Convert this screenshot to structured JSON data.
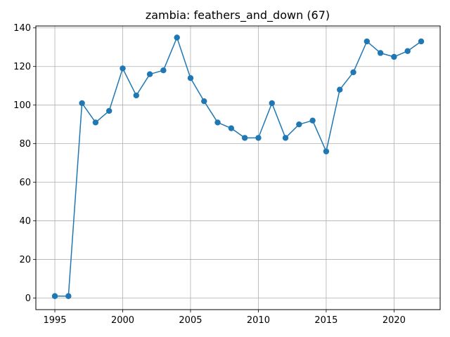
{
  "chart_data": {
    "type": "line",
    "title": "zambia: feathers_and_down (67)",
    "xlabel": "",
    "ylabel": "",
    "xlim": [
      1993.6,
      2023.4
    ],
    "ylim": [
      -6,
      141
    ],
    "grid": true,
    "x_ticks": [
      1995,
      2000,
      2005,
      2010,
      2015,
      2020
    ],
    "y_ticks": [
      0,
      20,
      40,
      60,
      80,
      100,
      120,
      140
    ],
    "line_color": "#1f77b4",
    "marker": "circle",
    "series": [
      {
        "x": [
          1995,
          1996,
          1997,
          1998,
          1999,
          2000,
          2001,
          2002,
          2003,
          2004,
          2005,
          2006,
          2007,
          2008,
          2009,
          2010,
          2011,
          2012,
          2013,
          2014,
          2015,
          2016,
          2017,
          2018,
          2019,
          2020,
          2021,
          2022
        ],
        "values": [
          1,
          1,
          101,
          91,
          97,
          119,
          105,
          116,
          118,
          135,
          114,
          102,
          91,
          88,
          83,
          83,
          101,
          83,
          90,
          92,
          76,
          108,
          117,
          133,
          127,
          125,
          128,
          133
        ]
      }
    ]
  }
}
